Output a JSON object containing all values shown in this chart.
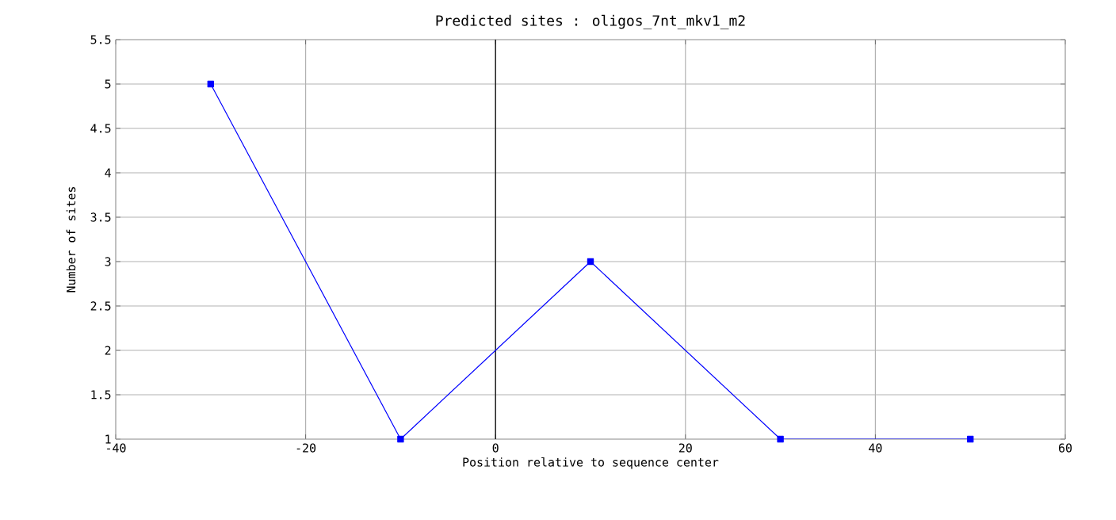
{
  "chart_data": {
    "type": "line",
    "title": "Predicted sites : oligos_7nt_mkv1_m2",
    "xlabel": "Position relative to sequence center",
    "ylabel": "Number of sites",
    "x": [
      -30,
      -10,
      10,
      30,
      50
    ],
    "series": [
      {
        "color": "#0000ff",
        "values": [
          5,
          1,
          3,
          1,
          1
        ]
      }
    ],
    "xlim": [
      -40,
      60
    ],
    "xticks": [
      -40,
      -20,
      0,
      20,
      40,
      60
    ],
    "ylim": [
      1,
      5.5
    ],
    "yticks": [
      1,
      1.5,
      2,
      2.5,
      3,
      3.5,
      4,
      4.5,
      5,
      5.5
    ],
    "ref_lines": [
      {
        "axis": "x",
        "value": 0,
        "color": "#000000"
      }
    ],
    "grid": true,
    "marker": "square",
    "line_style": "solid"
  }
}
